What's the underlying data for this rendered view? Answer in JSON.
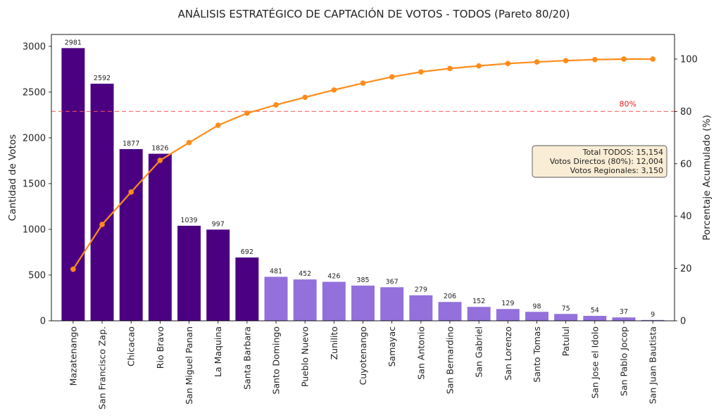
{
  "chart_data": {
    "type": "bar",
    "title": "ANÁLISIS ESTRATÉGICO DE CAPTACIÓN DE VOTOS - TODOS (Pareto 80/20)",
    "xlabel": "",
    "ylabel": "Cantidad de Votos",
    "y2label": "Porcentaje Acumulado (%)",
    "ylim": [
      0,
      3130
    ],
    "y2lim": [
      0,
      109.4
    ],
    "yticks": [
      0,
      500,
      1000,
      1500,
      2000,
      2500,
      3000
    ],
    "y2ticks": [
      0,
      20,
      40,
      60,
      80,
      100
    ],
    "grid": false,
    "categories": [
      "Mazatenango",
      "San Francisco Zap.",
      "Chicacao",
      "Rio Bravo",
      "San Miguel Panan",
      "La Maquina",
      "Santa Barbara",
      "Santo Domingo",
      "Pueblo Nuevo",
      "Zunilito",
      "Cuyotenango",
      "Samayac",
      "San Antonio",
      "San Bernardino",
      "San Gabriel",
      "San Lorenzo",
      "Santo Tomas",
      "Patulul",
      "San Jose el Idolo",
      "San Pablo Jocop",
      "San Juan Bautista"
    ],
    "series": [
      {
        "name": "",
        "values": [
          2981,
          2592,
          1877,
          1826,
          1039,
          997,
          692,
          481,
          452,
          426,
          385,
          367,
          279,
          206,
          152,
          129,
          98,
          75,
          54,
          37,
          9
        ],
        "data_labels": [
          "2981",
          "2592",
          "1877",
          "1826",
          "1039",
          "997",
          "692",
          "481",
          "452",
          "426",
          "385",
          "367",
          "279",
          "206",
          "152",
          "129",
          "98",
          "75",
          "54",
          "37",
          "9"
        ]
      }
    ],
    "cumulative_percent": [
      19.7,
      36.8,
      49.2,
      61.3,
      68.1,
      74.7,
      79.3,
      82.5,
      85.4,
      88.2,
      90.8,
      93.2,
      95.1,
      96.4,
      97.4,
      98.3,
      98.9,
      99.4,
      99.8,
      100.0,
      100.0
    ],
    "group_80_count": 7,
    "colors": {
      "primary_bar": "#4b0082",
      "secondary_bar": "#9370db",
      "cumulative_line": "#ff8c1a",
      "threshold_line": "#ff5555",
      "threshold_text": "#e02020"
    },
    "threshold": {
      "value": 80,
      "label": "80%"
    },
    "info_box": {
      "lines": [
        "Total TODOS: 15,154",
        "Votos Directos (80%): 12,004",
        "Votos Regionales: 3,150"
      ],
      "placement": "center-right"
    }
  }
}
